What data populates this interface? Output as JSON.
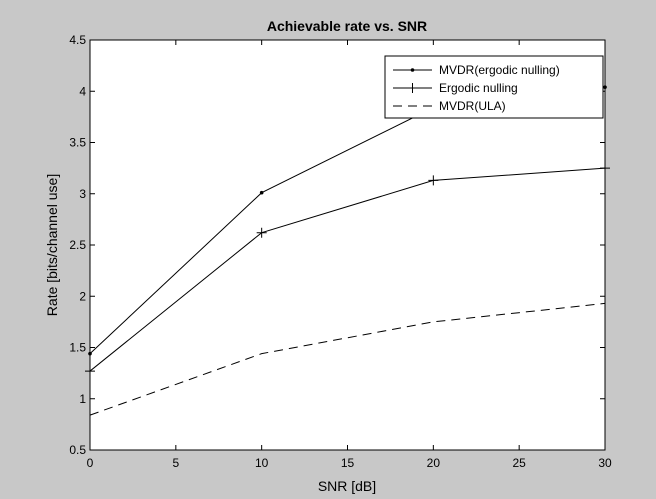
{
  "chart_data": {
    "type": "line",
    "title": "Achievable rate vs. SNR",
    "xlabel": "SNR [dB]",
    "ylabel": "Rate [bits/channel use]",
    "xlim": [
      0,
      30
    ],
    "ylim": [
      0.5,
      4.5
    ],
    "xticks": [
      0,
      5,
      10,
      15,
      20,
      25,
      30
    ],
    "yticks": [
      0.5,
      1,
      1.5,
      2,
      2.5,
      3,
      3.5,
      4,
      4.5
    ],
    "grid": false,
    "legend_position": "top-right",
    "series": [
      {
        "name": "MVDR(ergodic nulling)",
        "marker": "dot",
        "linestyle": "solid",
        "x": [
          0,
          10,
          20,
          30
        ],
        "y": [
          1.44,
          3.01,
          3.84,
          4.04
        ]
      },
      {
        "name": "Ergodic nulling",
        "marker": "plus",
        "linestyle": "solid",
        "x": [
          0,
          10,
          20,
          30
        ],
        "y": [
          1.27,
          2.62,
          3.13,
          3.25
        ]
      },
      {
        "name": "MVDR(ULA)",
        "marker": "none",
        "linestyle": "dashed",
        "x": [
          0,
          10,
          20,
          30
        ],
        "y": [
          0.84,
          1.44,
          1.75,
          1.93
        ]
      }
    ],
    "colors": {
      "figure_bg": "#c8c8c8",
      "axes_bg": "#ffffff",
      "line": "#000000"
    }
  }
}
